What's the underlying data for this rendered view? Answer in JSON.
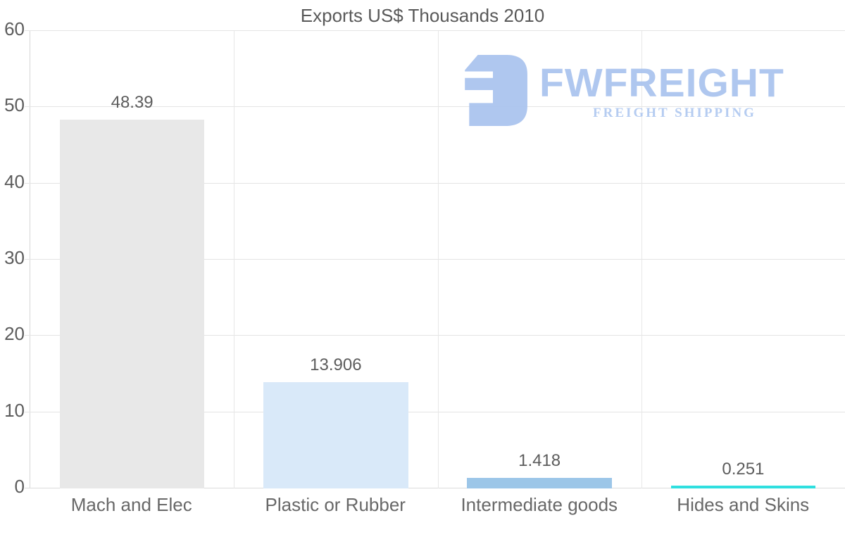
{
  "title": "Exports US$ Thousands 2010",
  "logo": {
    "name": "FWFREIGHT",
    "subtitle": "FREIGHT SHIPPING",
    "color": "#a9c3ee",
    "subtitle_color": "#afc8f0"
  },
  "chart_data": {
    "type": "bar",
    "title": "Exports US$ Thousands 2010",
    "categories": [
      "Mach and Elec",
      "Plastic or Rubber",
      "Intermediate goods",
      "Hides and Skins"
    ],
    "values": [
      48.39,
      13.906,
      1.418,
      0.251
    ],
    "value_labels": [
      "48.39",
      "13.906",
      "1.418",
      "0.251"
    ],
    "bar_colors": [
      "#e8e8e8",
      "#d9e9f9",
      "#9cc6e8",
      "#2fdfdf"
    ],
    "xlabel": "",
    "ylabel": "",
    "ylim": [
      0,
      60
    ],
    "yticks": [
      0,
      10,
      20,
      30,
      40,
      50,
      60
    ],
    "grid": true,
    "legend": false
  }
}
